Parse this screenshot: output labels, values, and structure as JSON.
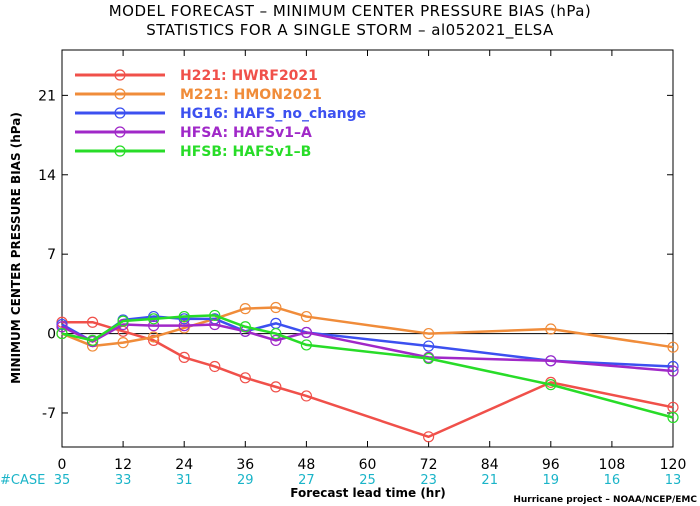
{
  "title_line1": "MODEL FORECAST – MINIMUM CENTER PRESSURE BIAS (hPa)",
  "title_line2": "STATISTICS FOR A SINGLE STORM – al052021_ELSA",
  "credit": "Hurricane project – NOAA/NCEP/EMC",
  "case_label": "#CASE",
  "colors": {
    "case": "#1ab4c8"
  },
  "chart_data": {
    "type": "line",
    "xlabel": "Forecast lead time (hr)",
    "ylabel": "MINIMUM CENTER PRESSURE BIAS (hPa)",
    "xlim": [
      0,
      120
    ],
    "ylim": [
      -10,
      25
    ],
    "xticks": [
      0,
      12,
      24,
      36,
      48,
      60,
      72,
      84,
      96,
      108,
      120
    ],
    "yticks": [
      -7,
      0,
      7,
      14,
      21
    ],
    "legend_position": "top-left",
    "cases": [
      35,
      33,
      31,
      29,
      27,
      25,
      23,
      21,
      19,
      16,
      13
    ],
    "series": [
      {
        "id": "H221",
        "name": "HWRF2021",
        "color": "#f0504a",
        "x": [
          0,
          6,
          12,
          18,
          24,
          30,
          36,
          42,
          48,
          72,
          96,
          120
        ],
        "y": [
          1.0,
          1.0,
          0.2,
          -0.6,
          -2.1,
          -2.9,
          -3.9,
          -4.7,
          -5.5,
          -9.1,
          -4.3,
          -6.5
        ]
      },
      {
        "id": "M221",
        "name": "HMON2021",
        "color": "#f08c3a",
        "x": [
          0,
          6,
          12,
          18,
          24,
          30,
          36,
          42,
          48,
          72,
          96,
          120
        ],
        "y": [
          0.0,
          -1.1,
          -0.8,
          -0.3,
          0.5,
          1.3,
          2.2,
          2.3,
          1.5,
          0.0,
          0.4,
          -1.2
        ]
      },
      {
        "id": "HG16",
        "name": "HAFS_no_change",
        "color": "#3c50f0",
        "x": [
          0,
          6,
          12,
          18,
          24,
          30,
          36,
          42,
          48,
          72,
          96,
          120
        ],
        "y": [
          0.8,
          -0.7,
          1.2,
          1.5,
          1.3,
          1.3,
          0.2,
          0.9,
          0.1,
          -1.1,
          -2.4,
          -2.9
        ]
      },
      {
        "id": "HFSA",
        "name": "HAFSv1–A",
        "color": "#a028c8",
        "x": [
          0,
          6,
          12,
          18,
          24,
          30,
          36,
          42,
          48,
          72,
          96,
          120
        ],
        "y": [
          0.6,
          -0.7,
          0.8,
          0.7,
          0.7,
          0.8,
          0.2,
          -0.6,
          0.1,
          -2.1,
          -2.4,
          -3.3
        ]
      },
      {
        "id": "HFSB",
        "name": "HAFSv1–B",
        "color": "#28dc28",
        "x": [
          0,
          6,
          12,
          18,
          24,
          30,
          36,
          42,
          48,
          72,
          96,
          120
        ],
        "y": [
          0.0,
          -0.6,
          1.1,
          1.3,
          1.5,
          1.6,
          0.6,
          0.0,
          -1.0,
          -2.2,
          -4.5,
          -7.4
        ]
      }
    ]
  }
}
